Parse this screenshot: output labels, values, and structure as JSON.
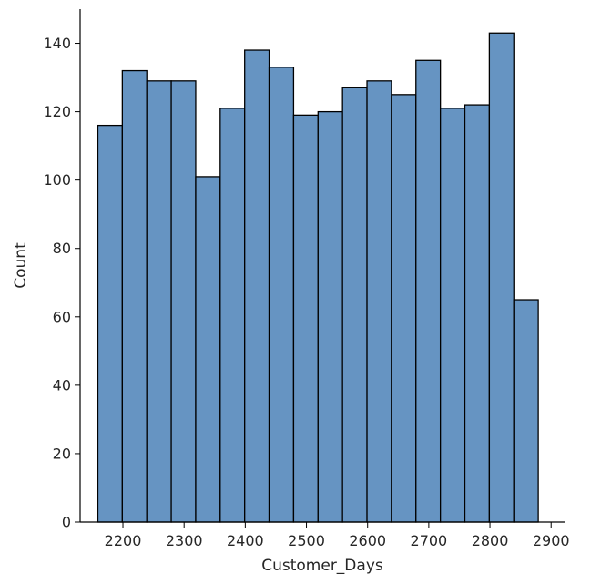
{
  "chart_data": {
    "type": "bar",
    "title": "",
    "xlabel": "Customer_Days",
    "ylabel": "Count",
    "bar_color": "#6694c2",
    "edge_color": "#000000",
    "xlim": [
      2130,
      2922
    ],
    "ylim": [
      0,
      150
    ],
    "xticks": [
      2200,
      2300,
      2400,
      2500,
      2600,
      2700,
      2800,
      2900
    ],
    "yticks": [
      0,
      20,
      40,
      60,
      80,
      100,
      120,
      140
    ],
    "grid": false,
    "bins": [
      {
        "x0": 2159.0,
        "x1": 2199.0,
        "count": 116
      },
      {
        "x0": 2199.0,
        "x1": 2239.0,
        "count": 132
      },
      {
        "x0": 2239.0,
        "x1": 2279.0,
        "count": 129
      },
      {
        "x0": 2279.0,
        "x1": 2319.0,
        "count": 129
      },
      {
        "x0": 2319.0,
        "x1": 2359.0,
        "count": 101
      },
      {
        "x0": 2359.0,
        "x1": 2399.0,
        "count": 121
      },
      {
        "x0": 2399.0,
        "x1": 2439.0,
        "count": 138
      },
      {
        "x0": 2439.0,
        "x1": 2479.0,
        "count": 133
      },
      {
        "x0": 2479.0,
        "x1": 2519.0,
        "count": 119
      },
      {
        "x0": 2519.0,
        "x1": 2559.0,
        "count": 120
      },
      {
        "x0": 2559.0,
        "x1": 2599.0,
        "count": 127
      },
      {
        "x0": 2599.0,
        "x1": 2639.0,
        "count": 129
      },
      {
        "x0": 2639.0,
        "x1": 2679.0,
        "count": 125
      },
      {
        "x0": 2679.0,
        "x1": 2719.0,
        "count": 135
      },
      {
        "x0": 2719.0,
        "x1": 2759.0,
        "count": 121
      },
      {
        "x0": 2759.0,
        "x1": 2799.0,
        "count": 122
      },
      {
        "x0": 2799.0,
        "x1": 2839.0,
        "count": 143
      },
      {
        "x0": 2839.0,
        "x1": 2879.0,
        "count": 65
      }
    ]
  }
}
